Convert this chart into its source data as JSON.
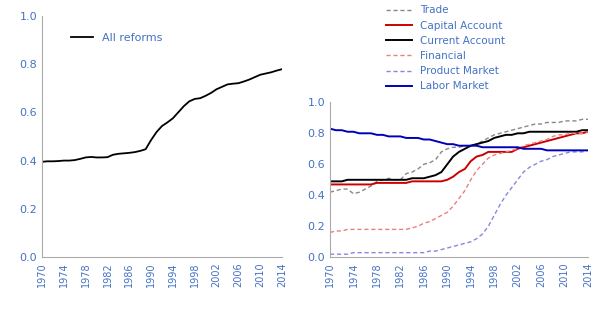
{
  "years": [
    1970,
    1971,
    1972,
    1973,
    1974,
    1975,
    1976,
    1977,
    1978,
    1979,
    1980,
    1981,
    1982,
    1983,
    1984,
    1985,
    1986,
    1987,
    1988,
    1989,
    1990,
    1991,
    1992,
    1993,
    1994,
    1995,
    1996,
    1997,
    1998,
    1999,
    2000,
    2001,
    2002,
    2003,
    2004,
    2005,
    2006,
    2007,
    2008,
    2009,
    2010,
    2011,
    2012,
    2013,
    2014
  ],
  "all_reforms": [
    0.395,
    0.397,
    0.397,
    0.398,
    0.4,
    0.4,
    0.402,
    0.407,
    0.413,
    0.415,
    0.413,
    0.413,
    0.414,
    0.424,
    0.428,
    0.43,
    0.432,
    0.435,
    0.44,
    0.447,
    0.485,
    0.518,
    0.543,
    0.558,
    0.575,
    0.6,
    0.625,
    0.645,
    0.655,
    0.658,
    0.668,
    0.68,
    0.695,
    0.705,
    0.715,
    0.718,
    0.72,
    0.727,
    0.735,
    0.745,
    0.755,
    0.76,
    0.765,
    0.772,
    0.778
  ],
  "trade": [
    0.42,
    0.43,
    0.44,
    0.44,
    0.41,
    0.42,
    0.44,
    0.46,
    0.49,
    0.5,
    0.51,
    0.5,
    0.5,
    0.54,
    0.55,
    0.57,
    0.6,
    0.61,
    0.63,
    0.68,
    0.7,
    0.71,
    0.71,
    0.72,
    0.72,
    0.73,
    0.75,
    0.77,
    0.79,
    0.8,
    0.81,
    0.82,
    0.83,
    0.84,
    0.85,
    0.86,
    0.86,
    0.87,
    0.87,
    0.87,
    0.88,
    0.88,
    0.88,
    0.89,
    0.89
  ],
  "capital_account": [
    0.47,
    0.47,
    0.47,
    0.47,
    0.47,
    0.47,
    0.47,
    0.47,
    0.48,
    0.48,
    0.48,
    0.48,
    0.48,
    0.48,
    0.49,
    0.49,
    0.49,
    0.49,
    0.49,
    0.49,
    0.5,
    0.52,
    0.55,
    0.57,
    0.62,
    0.65,
    0.66,
    0.68,
    0.68,
    0.68,
    0.68,
    0.68,
    0.7,
    0.71,
    0.72,
    0.73,
    0.74,
    0.75,
    0.76,
    0.77,
    0.78,
    0.79,
    0.8,
    0.8,
    0.81
  ],
  "current_account": [
    0.49,
    0.49,
    0.49,
    0.5,
    0.5,
    0.5,
    0.5,
    0.5,
    0.5,
    0.5,
    0.5,
    0.5,
    0.5,
    0.5,
    0.51,
    0.51,
    0.51,
    0.52,
    0.53,
    0.55,
    0.6,
    0.65,
    0.68,
    0.7,
    0.72,
    0.73,
    0.74,
    0.75,
    0.77,
    0.78,
    0.79,
    0.79,
    0.8,
    0.8,
    0.81,
    0.81,
    0.81,
    0.81,
    0.81,
    0.81,
    0.81,
    0.81,
    0.81,
    0.82,
    0.82
  ],
  "financial": [
    0.16,
    0.17,
    0.17,
    0.18,
    0.18,
    0.18,
    0.18,
    0.18,
    0.18,
    0.18,
    0.18,
    0.18,
    0.18,
    0.18,
    0.19,
    0.2,
    0.22,
    0.23,
    0.25,
    0.27,
    0.29,
    0.33,
    0.38,
    0.43,
    0.5,
    0.56,
    0.6,
    0.64,
    0.66,
    0.67,
    0.68,
    0.69,
    0.7,
    0.72,
    0.73,
    0.74,
    0.75,
    0.76,
    0.78,
    0.79,
    0.79,
    0.8,
    0.8,
    0.8,
    0.81
  ],
  "product_market": [
    0.02,
    0.02,
    0.02,
    0.02,
    0.03,
    0.03,
    0.03,
    0.03,
    0.03,
    0.03,
    0.03,
    0.03,
    0.03,
    0.03,
    0.03,
    0.03,
    0.03,
    0.04,
    0.04,
    0.05,
    0.06,
    0.07,
    0.08,
    0.09,
    0.1,
    0.12,
    0.15,
    0.2,
    0.27,
    0.34,
    0.4,
    0.45,
    0.5,
    0.55,
    0.58,
    0.6,
    0.62,
    0.63,
    0.65,
    0.66,
    0.67,
    0.68,
    0.68,
    0.68,
    0.69
  ],
  "labor_market": [
    0.83,
    0.82,
    0.82,
    0.81,
    0.81,
    0.8,
    0.8,
    0.8,
    0.79,
    0.79,
    0.78,
    0.78,
    0.78,
    0.77,
    0.77,
    0.77,
    0.76,
    0.76,
    0.75,
    0.74,
    0.73,
    0.73,
    0.72,
    0.72,
    0.72,
    0.72,
    0.71,
    0.71,
    0.71,
    0.71,
    0.71,
    0.71,
    0.71,
    0.7,
    0.7,
    0.7,
    0.7,
    0.69,
    0.69,
    0.69,
    0.69,
    0.69,
    0.69,
    0.69,
    0.69
  ],
  "ylim": [
    0.0,
    1.0
  ],
  "yticks": [
    0.0,
    0.2,
    0.4,
    0.6,
    0.8,
    1.0
  ],
  "xtick_years": [
    1970,
    1974,
    1978,
    1982,
    1986,
    1990,
    1994,
    1998,
    2002,
    2006,
    2010,
    2014
  ],
  "colors": {
    "trade": "#888888",
    "capital_account": "#cc0000",
    "current_account": "#000000",
    "financial": "#e88080",
    "product_market": "#8888dd",
    "labor_market": "#0000bb",
    "all_reforms": "#000000"
  },
  "tick_label_color": "#4472c4",
  "legend_label_color": "#4472c4"
}
